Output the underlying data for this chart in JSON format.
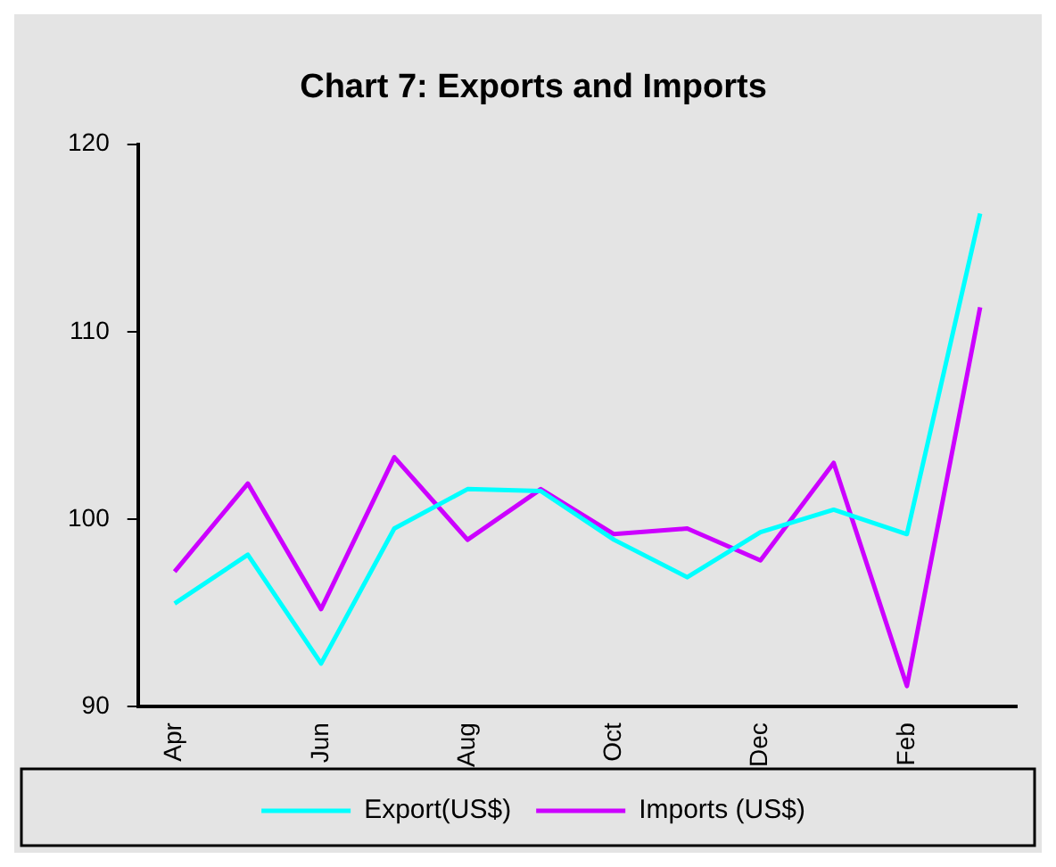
{
  "chart_data": {
    "type": "line",
    "title": "Chart 7: Exports and Imports",
    "categories": [
      "Apr",
      null,
      "Jun",
      null,
      "Aug",
      null,
      "Oct",
      null,
      "Dec",
      null,
      "Feb",
      null
    ],
    "series": [
      {
        "name": "Export(US$)",
        "color": "#00ffff",
        "values": [
          95.5,
          98.1,
          92.3,
          99.5,
          101.6,
          101.5,
          98.9,
          96.9,
          99.3,
          100.5,
          99.2,
          116.3
        ]
      },
      {
        "name": "Imports (US$)",
        "color": "#cc00ff",
        "values": [
          97.2,
          101.9,
          95.2,
          103.3,
          98.9,
          101.6,
          99.2,
          99.5,
          97.8,
          103.0,
          91.1,
          111.3
        ]
      }
    ],
    "ylim": [
      90,
      120
    ],
    "yticks": [
      90,
      100,
      110,
      120
    ],
    "grid": false,
    "legend": "bottom",
    "marker": "none",
    "line_style": "solid"
  }
}
